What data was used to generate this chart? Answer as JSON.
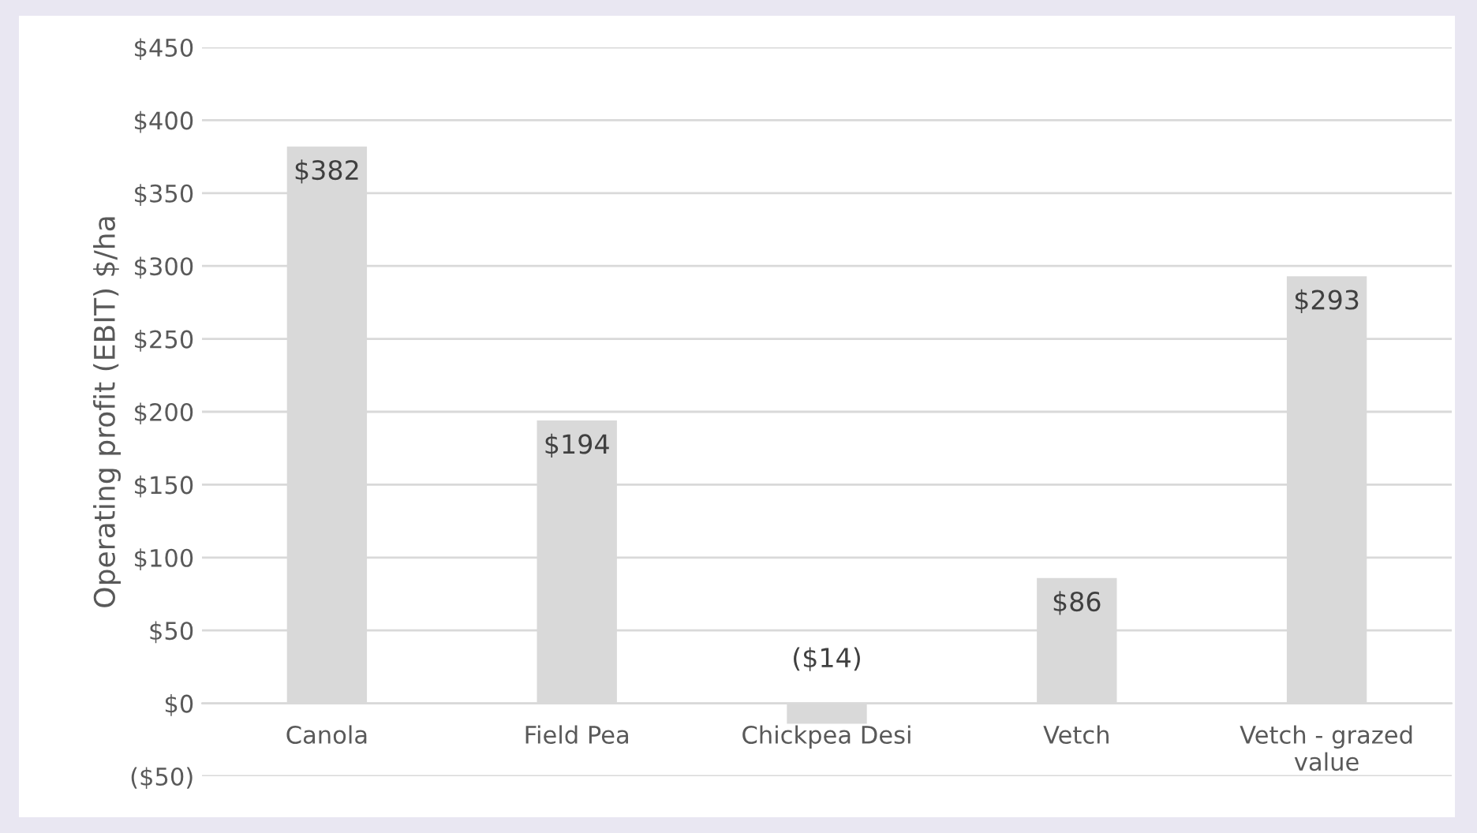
{
  "chart_data": {
    "type": "bar",
    "ylabel": "Operating profit (EBIT) $/ha",
    "categories": [
      "Canola",
      "Field Pea",
      "Chickpea Desi",
      "Vetch",
      "Vetch - grazed\nvalue"
    ],
    "values": [
      382,
      194,
      -14,
      86,
      293
    ],
    "value_labels": [
      "$382",
      "$194",
      "($14)",
      "$86",
      "$293"
    ],
    "color": "#d9d9d9",
    "ylim": [
      -50,
      450
    ],
    "yticks": [
      {
        "value": -50,
        "label": "($50)"
      },
      {
        "value": 0,
        "label": "$0"
      },
      {
        "value": 50,
        "label": "$50"
      },
      {
        "value": 100,
        "label": "$100"
      },
      {
        "value": 150,
        "label": "$150"
      },
      {
        "value": 200,
        "label": "$200"
      },
      {
        "value": 250,
        "label": "$250"
      },
      {
        "value": 300,
        "label": "$300"
      },
      {
        "value": 350,
        "label": "$350"
      },
      {
        "value": 400,
        "label": "$400"
      },
      {
        "value": 450,
        "label": "$450"
      }
    ],
    "grid": "y",
    "legend": false
  }
}
